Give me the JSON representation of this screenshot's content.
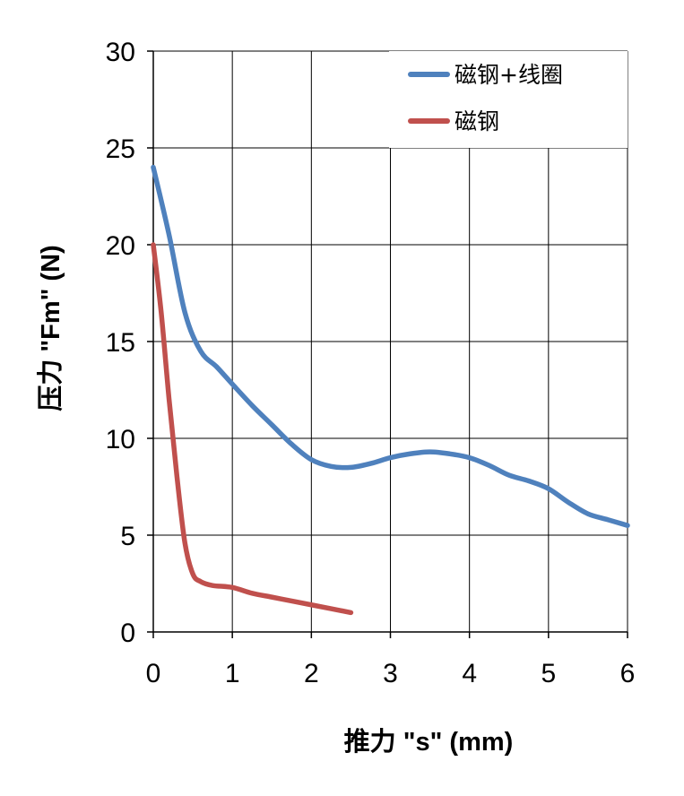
{
  "chart_data": {
    "type": "line",
    "title": "",
    "xlabel": "推力 \"s\" (mm)",
    "ylabel": "压力 \"Fm\" (N)",
    "xlim": [
      0,
      6
    ],
    "ylim": [
      0,
      30
    ],
    "x_ticks": [
      0,
      1,
      2,
      3,
      4,
      5,
      6
    ],
    "y_ticks": [
      0,
      5,
      10,
      15,
      20,
      25,
      30
    ],
    "x_tick_labels": [
      "0",
      "1",
      "2",
      "3",
      "4",
      "5",
      "6"
    ],
    "y_tick_labels": [
      "0",
      "5",
      "10",
      "15",
      "20",
      "25",
      "30"
    ],
    "grid": true,
    "legend_position": "top-right",
    "series": [
      {
        "name": "磁钢+线圈",
        "color": "#4F81BD",
        "points": [
          [
            0,
            24
          ],
          [
            0.2,
            20.5
          ],
          [
            0.4,
            16.5
          ],
          [
            0.6,
            14.5
          ],
          [
            0.8,
            13.7
          ],
          [
            1.0,
            12.8
          ],
          [
            1.25,
            11.7
          ],
          [
            1.5,
            10.7
          ],
          [
            1.75,
            9.7
          ],
          [
            2.0,
            8.9
          ],
          [
            2.25,
            8.55
          ],
          [
            2.5,
            8.5
          ],
          [
            2.75,
            8.7
          ],
          [
            3.0,
            9.0
          ],
          [
            3.25,
            9.2
          ],
          [
            3.5,
            9.3
          ],
          [
            3.75,
            9.2
          ],
          [
            4.0,
            9.0
          ],
          [
            4.25,
            8.6
          ],
          [
            4.5,
            8.1
          ],
          [
            4.75,
            7.8
          ],
          [
            5.0,
            7.4
          ],
          [
            5.25,
            6.7
          ],
          [
            5.5,
            6.1
          ],
          [
            5.75,
            5.8
          ],
          [
            6.0,
            5.5
          ]
        ]
      },
      {
        "name": "磁钢",
        "color": "#C0504D",
        "points": [
          [
            0,
            20
          ],
          [
            0.1,
            16.5
          ],
          [
            0.2,
            12
          ],
          [
            0.3,
            8
          ],
          [
            0.4,
            4.6
          ],
          [
            0.5,
            3.0
          ],
          [
            0.6,
            2.6
          ],
          [
            0.75,
            2.4
          ],
          [
            1.0,
            2.3
          ],
          [
            1.25,
            2.0
          ],
          [
            1.5,
            1.8
          ],
          [
            1.75,
            1.6
          ],
          [
            2.0,
            1.4
          ],
          [
            2.25,
            1.2
          ],
          [
            2.5,
            1.0
          ]
        ]
      }
    ]
  }
}
